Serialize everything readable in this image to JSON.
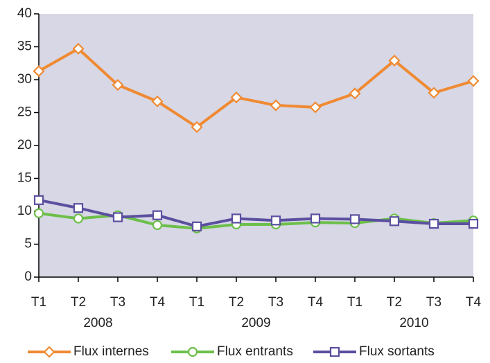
{
  "chart_data": {
    "type": "line",
    "categories": [
      "T1",
      "T2",
      "T3",
      "T4",
      "T1",
      "T2",
      "T3",
      "T4",
      "T1",
      "T2",
      "T3",
      "T4"
    ],
    "year_groups": [
      "2008",
      "2009",
      "2010"
    ],
    "series": [
      {
        "name": "Flux internes",
        "color": "#f08a32",
        "marker": "diamond",
        "values": [
          31.3,
          34.7,
          29.2,
          26.7,
          22.8,
          27.3,
          26.1,
          25.8,
          27.9,
          32.9,
          28.0,
          29.8
        ]
      },
      {
        "name": "Flux entrants",
        "color": "#6cbf4a",
        "marker": "circle",
        "values": [
          9.7,
          8.9,
          9.4,
          7.9,
          7.4,
          8.0,
          8.0,
          8.3,
          8.2,
          8.9,
          8.2,
          8.6
        ]
      },
      {
        "name": "Flux sortants",
        "color": "#5b4fa0",
        "marker": "square",
        "values": [
          11.7,
          10.5,
          9.1,
          9.4,
          7.7,
          8.9,
          8.6,
          8.9,
          8.8,
          8.5,
          8.1,
          8.1
        ]
      }
    ],
    "ylim": [
      0,
      40
    ],
    "yticks": [
      0,
      5,
      10,
      15,
      20,
      25,
      30,
      35,
      40
    ],
    "background": "#d7d7e5",
    "legend": "bottom"
  }
}
